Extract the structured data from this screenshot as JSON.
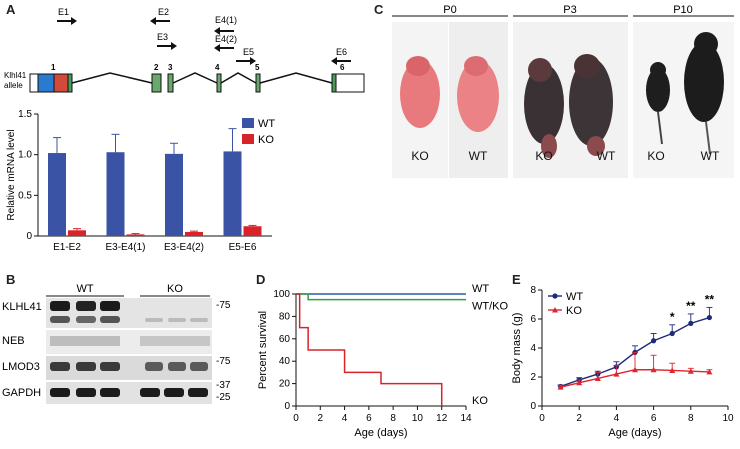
{
  "panels": {
    "A": "A",
    "B": "B",
    "C": "C",
    "D": "D",
    "E": "E"
  },
  "panel_a_diagram": {
    "allele_label": "Klhl41 allele",
    "allele_label_lines": [
      "Klhl41",
      "allele"
    ],
    "exons": [
      "1",
      "2",
      "3",
      "4",
      "5",
      "6"
    ],
    "primers": [
      "E1",
      "E2",
      "E3",
      "E4(1)",
      "E4(2)",
      "E5",
      "E6"
    ]
  },
  "panel_c": {
    "timepoints": [
      "P0",
      "P3",
      "P10"
    ],
    "genotype_labels": [
      {
        "timepoint": "P0",
        "left": "KO",
        "right": "WT"
      },
      {
        "timepoint": "P3",
        "left": "KO",
        "right": "WT"
      },
      {
        "timepoint": "P10",
        "left": "KO",
        "right": "WT"
      }
    ],
    "colors": {
      "p0_skin": "#e87a7e",
      "dark_fur": "#1e1e1e",
      "bg": "#f4f4f4"
    }
  },
  "panel_b": {
    "group_labels": [
      "WT",
      "KO"
    ],
    "rows": [
      "KLHL41",
      "NEB",
      "LMOD3",
      "GAPDH"
    ],
    "markers": [
      "-75",
      "-75",
      "-37",
      "-25"
    ]
  },
  "chart_data": [
    {
      "type": "bar",
      "panel": "A",
      "categories": [
        "E1-E2",
        "E3-E4(1)",
        "E3-E4(2)",
        "E5-E6"
      ],
      "series": [
        {
          "name": "WT",
          "color": "#3a53a4",
          "values": [
            1.02,
            1.03,
            1.01,
            1.04
          ],
          "errors": [
            0.19,
            0.22,
            0.13,
            0.28
          ]
        },
        {
          "name": "KO",
          "color": "#d8232a",
          "values": [
            0.07,
            0.02,
            0.05,
            0.12
          ],
          "errors": [
            0.02,
            0.01,
            0.01,
            0.01
          ]
        }
      ],
      "ylabel": "Relative mRNA level",
      "ylim": [
        0,
        1.5
      ],
      "yticks": [
        "0",
        "0.5",
        "1.0",
        "1.5"
      ],
      "legend": "top-right"
    },
    {
      "type": "line",
      "panel": "D",
      "xlabel": "Age (days)",
      "ylabel": "Percent survival",
      "xlim": [
        0,
        14
      ],
      "ylim": [
        0,
        100
      ],
      "xticks": [
        "0",
        "2",
        "4",
        "6",
        "8",
        "10",
        "12",
        "14"
      ],
      "yticks": [
        "0",
        "20",
        "40",
        "60",
        "80",
        "100"
      ],
      "series": [
        {
          "name": "WT",
          "color": "#2b5da8",
          "step": [
            [
              0,
              100
            ],
            [
              14,
              100
            ]
          ]
        },
        {
          "name": "WT/KO",
          "color": "#3a9a4a",
          "step": [
            [
              0,
              100
            ],
            [
              1,
              100
            ],
            [
              1,
              95
            ],
            [
              14,
              95
            ]
          ]
        },
        {
          "name": "KO",
          "color": "#d8232a",
          "step": [
            [
              0,
              100
            ],
            [
              0.3,
              100
            ],
            [
              0.3,
              70
            ],
            [
              1,
              70
            ],
            [
              1,
              50
            ],
            [
              4,
              50
            ],
            [
              4,
              30
            ],
            [
              7,
              30
            ],
            [
              7,
              20
            ],
            [
              12,
              20
            ],
            [
              12,
              0
            ]
          ]
        }
      ]
    },
    {
      "type": "line",
      "panel": "E",
      "xlabel": "Age (days)",
      "ylabel": "Body mass (g)",
      "xlim": [
        0,
        10
      ],
      "ylim": [
        0,
        8
      ],
      "xticks": [
        "0",
        "2",
        "4",
        "6",
        "8",
        "10"
      ],
      "yticks": [
        "0",
        "2",
        "4",
        "6",
        "8"
      ],
      "x": [
        1,
        2,
        3,
        4,
        5,
        6,
        7,
        8,
        9
      ],
      "series": [
        {
          "name": "WT",
          "color": "#1f2a7a",
          "marker": "circle",
          "values": [
            1.35,
            1.8,
            2.2,
            2.7,
            3.7,
            4.5,
            5.0,
            5.7,
            6.1
          ],
          "errors": [
            0.1,
            0.15,
            0.2,
            0.35,
            0.45,
            0.5,
            0.6,
            0.65,
            0.7
          ]
        },
        {
          "name": "KO",
          "color": "#e02530",
          "marker": "triangle",
          "values": [
            1.3,
            1.6,
            1.9,
            2.2,
            2.5,
            2.5,
            2.45,
            2.4,
            2.35
          ],
          "errors": [
            0.1,
            0.2,
            0.4,
            0.6,
            1.2,
            1.0,
            0.5,
            0.2,
            0.15
          ]
        }
      ],
      "significance": [
        {
          "x": 7,
          "label": "*"
        },
        {
          "x": 8,
          "label": "**"
        },
        {
          "x": 9,
          "label": "**"
        }
      ],
      "legend": "top-left"
    }
  ]
}
